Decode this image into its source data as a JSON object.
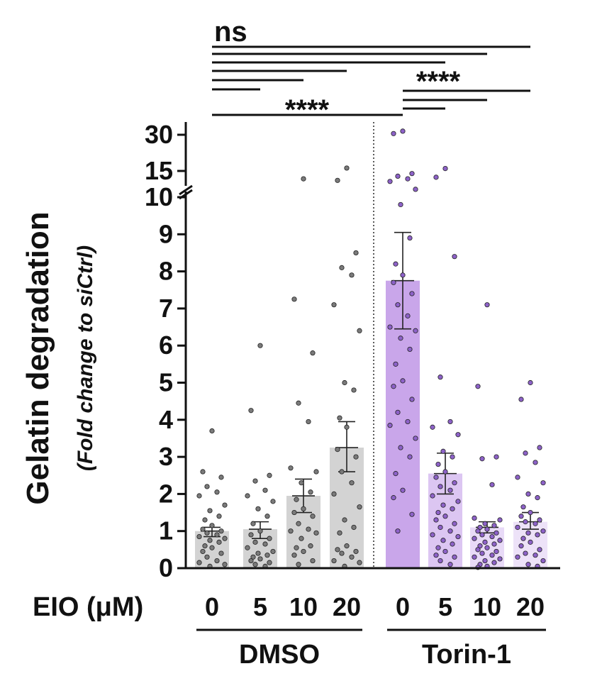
{
  "chart_data": {
    "type": "bar",
    "ylabel": "Gelatin degradation",
    "ylabel_sub": "(Fold change to siCtrl)",
    "xaxis_label": "EIO (μM)",
    "y_ticks_lower": [
      0,
      1,
      2,
      3,
      4,
      5,
      6,
      7,
      8,
      9,
      10
    ],
    "y_ticks_upper": [
      15,
      30
    ],
    "y_break": [
      10,
      15
    ],
    "groups": [
      {
        "name": "DMSO",
        "start": 0,
        "end": 3
      },
      {
        "name": "Torin-1",
        "start": 4,
        "end": 7
      }
    ],
    "categories": [
      "0",
      "5",
      "10",
      "20",
      "0",
      "5",
      "10",
      "20"
    ],
    "bars": [
      {
        "group": "DMSO",
        "dose": "0",
        "value": 1.0,
        "error": [
          0.85,
          1.1
        ],
        "color": "#d3d3d3",
        "dot": "#7a7a7a",
        "points": [
          3.7,
          2.6,
          2.45,
          2.2,
          2.05,
          1.95,
          1.7,
          1.55,
          1.4,
          1.3,
          1.15,
          1.05,
          1.0,
          0.95,
          0.9,
          0.85,
          0.8,
          0.75,
          0.7,
          0.6,
          0.55,
          0.45,
          0.4,
          0.3,
          0.2,
          0.15,
          0.1,
          0.05
        ]
      },
      {
        "group": "DMSO",
        "dose": "5",
        "value": 1.05,
        "error": [
          0.8,
          1.25
        ],
        "color": "#d3d3d3",
        "dot": "#7a7a7a",
        "points": [
          6.0,
          4.25,
          2.5,
          2.35,
          2.1,
          1.95,
          1.8,
          1.6,
          1.4,
          1.2,
          1.0,
          0.9,
          0.8,
          0.7,
          0.65,
          0.55,
          0.45,
          0.4,
          0.35,
          0.3,
          0.25,
          0.2,
          0.15,
          0.1,
          0.05
        ]
      },
      {
        "group": "DMSO",
        "dose": "10",
        "value": 1.95,
        "error": [
          1.5,
          2.4
        ],
        "color": "#d3d3d3",
        "dot": "#7a7a7a",
        "points": [
          13.5,
          7.25,
          5.8,
          4.45,
          3.95,
          2.7,
          2.6,
          2.3,
          2.05,
          1.85,
          1.6,
          1.5,
          1.4,
          1.2,
          1.05,
          1.0,
          0.95,
          0.8,
          0.6,
          0.55,
          0.45,
          0.35,
          0.2,
          0.1
        ]
      },
      {
        "group": "DMSO",
        "dose": "20",
        "value": 3.25,
        "error": [
          2.6,
          3.95
        ],
        "color": "#d3d3d3",
        "dot": "#7a7a7a",
        "points": [
          16.2,
          13.2,
          8.5,
          8.1,
          7.9,
          7.1,
          6.4,
          5.0,
          4.8,
          4.05,
          3.8,
          3.2,
          3.0,
          2.6,
          2.3,
          2.0,
          1.65,
          1.3,
          1.1,
          0.95,
          0.6,
          0.5,
          0.45,
          0.4,
          0.3,
          0.2,
          0.15,
          0.05
        ]
      },
      {
        "group": "Torin-1",
        "dose": "0",
        "value": 7.75,
        "error": [
          6.45,
          9.05
        ],
        "color": "#c9a6ea",
        "dot": "#8d62c8",
        "points": [
          31.5,
          30.5,
          14.5,
          14.0,
          13.5,
          13.0,
          11.5,
          9.8,
          8.9,
          8.2,
          7.9,
          7.7,
          7.4,
          7.1,
          6.8,
          6.5,
          6.4,
          6.2,
          5.9,
          5.5,
          5.05,
          4.9,
          4.55,
          4.2,
          3.95,
          3.85,
          3.5,
          3.25,
          3.0,
          2.55,
          2.1,
          1.9,
          1.45,
          1.0
        ]
      },
      {
        "group": "Torin-1",
        "dose": "5",
        "value": 2.55,
        "error": [
          2.0,
          3.1
        ],
        "color": "#dcc6f2",
        "dot": "#8d62c8",
        "points": [
          16.0,
          13.8,
          8.4,
          5.15,
          3.95,
          3.8,
          3.6,
          3.15,
          3.0,
          2.8,
          2.6,
          2.45,
          2.3,
          2.2,
          2.1,
          1.95,
          1.8,
          1.7,
          1.6,
          1.5,
          1.4,
          1.3,
          1.2,
          1.1,
          1.0,
          0.9,
          0.85,
          0.75,
          0.65,
          0.55,
          0.45,
          0.35,
          0.3,
          0.2,
          0.1
        ]
      },
      {
        "group": "Torin-1",
        "dose": "10",
        "value": 1.1,
        "error": [
          0.95,
          1.25
        ],
        "color": "#e8daf7",
        "dot": "#8d62c8",
        "points": [
          7.1,
          4.9,
          3.0,
          2.95,
          2.25,
          1.35,
          1.3,
          1.2,
          1.15,
          1.1,
          1.05,
          1.0,
          0.95,
          0.9,
          0.85,
          0.8,
          0.75,
          0.7,
          0.65,
          0.6,
          0.55,
          0.5,
          0.45,
          0.4,
          0.35,
          0.3,
          0.25,
          0.2,
          0.15,
          0.1,
          0.05,
          0.02
        ]
      },
      {
        "group": "Torin-1",
        "dose": "20",
        "value": 1.25,
        "error": [
          1.05,
          1.5
        ],
        "color": "#ede2f8",
        "dot": "#8d62c8",
        "points": [
          5.0,
          4.55,
          3.25,
          3.1,
          2.85,
          2.45,
          2.3,
          2.0,
          1.9,
          1.65,
          1.5,
          1.4,
          1.3,
          1.25,
          1.2,
          1.1,
          1.0,
          0.95,
          0.9,
          0.8,
          0.7,
          0.6,
          0.5,
          0.4,
          0.35,
          0.3,
          0.2,
          0.1,
          0.05
        ]
      }
    ],
    "significance": [
      {
        "label": "ns",
        "comparisons": [
          [
            0,
            7
          ],
          [
            0,
            6
          ],
          [
            0,
            5
          ],
          [
            0,
            3
          ],
          [
            0,
            2
          ],
          [
            0,
            1
          ]
        ]
      },
      {
        "label": "****",
        "comparisons": [
          [
            0,
            4
          ]
        ]
      },
      {
        "label": "****",
        "comparisons": [
          [
            4,
            7
          ],
          [
            4,
            6
          ],
          [
            4,
            5
          ]
        ]
      }
    ]
  }
}
